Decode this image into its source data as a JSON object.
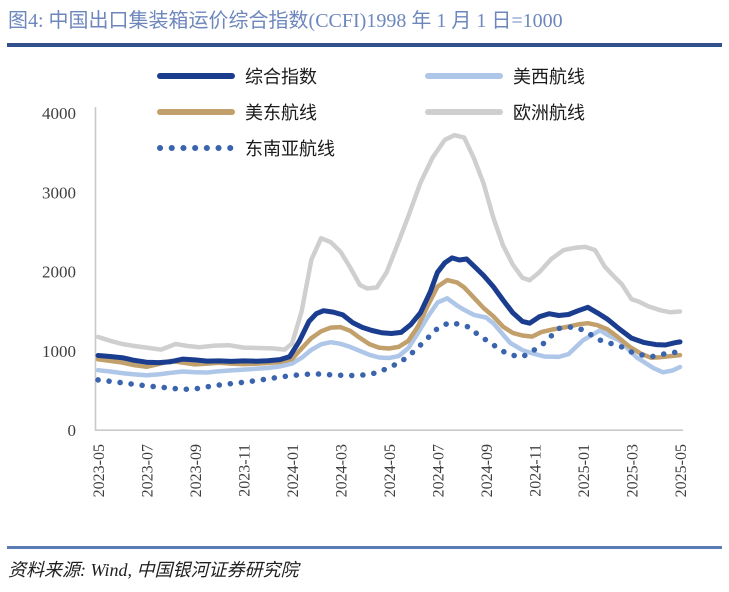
{
  "header": {
    "title": "图4: 中国出口集装箱运价综合指数(CCFI)1998 年 1 月 1 日=1000"
  },
  "footer": {
    "source": "资料来源: Wind, 中国银河证券研究院"
  },
  "colors": {
    "title_text": "#6D87BD",
    "title_rule": "#31508C",
    "footer_rule": "#5B7BB4",
    "axis_line": "#C9C9C9",
    "axis_text": "#3F3F3F"
  },
  "chart_data": {
    "type": "line",
    "title": "中国出口集装箱运价综合指数(CCFI) 1998年1月1日=1000",
    "grid": false,
    "legend_position": "top-left, two columns, inside plot",
    "x_axis": {
      "unit": "month",
      "start": "2023-05",
      "end": "2025-05",
      "range_months": [
        0,
        24
      ],
      "tick_labels": [
        "2023-05",
        "2023-07",
        "2023-09",
        "2023-11",
        "2024-01",
        "2024-03",
        "2024-05",
        "2024-07",
        "2024-09",
        "2024-11",
        "2025-01",
        "2025-03",
        "2025-05"
      ],
      "tick_positions_months": [
        0,
        2,
        4,
        6,
        8,
        10,
        12,
        14,
        16,
        18,
        20,
        22,
        24
      ]
    },
    "y_axis": {
      "ticks": [
        0,
        1000,
        2000,
        3000,
        4000
      ],
      "range": [
        0,
        4000
      ]
    },
    "draw_order": [
      "europe",
      "us-west",
      "us-east",
      "composite",
      "southeast-asia"
    ],
    "series": [
      {
        "id": "composite",
        "label": "综合指数",
        "color": "#1B3D8F",
        "style": "solid",
        "width": 5,
        "points": [
          [
            0,
            940
          ],
          [
            0.5,
            928
          ],
          [
            1,
            912
          ],
          [
            1.5,
            878
          ],
          [
            2,
            855
          ],
          [
            2.5,
            850
          ],
          [
            3,
            862
          ],
          [
            3.5,
            895
          ],
          [
            4,
            885
          ],
          [
            4.5,
            870
          ],
          [
            5,
            872
          ],
          [
            5.5,
            865
          ],
          [
            6,
            872
          ],
          [
            6.5,
            868
          ],
          [
            7,
            874
          ],
          [
            7.5,
            888
          ],
          [
            7.9,
            925
          ],
          [
            8.3,
            1120
          ],
          [
            8.7,
            1370
          ],
          [
            9,
            1468
          ],
          [
            9.3,
            1505
          ],
          [
            9.7,
            1488
          ],
          [
            10.1,
            1452
          ],
          [
            10.5,
            1355
          ],
          [
            10.9,
            1295
          ],
          [
            11.3,
            1255
          ],
          [
            11.7,
            1228
          ],
          [
            12.1,
            1218
          ],
          [
            12.5,
            1232
          ],
          [
            12.9,
            1330
          ],
          [
            13.3,
            1480
          ],
          [
            13.7,
            1740
          ],
          [
            14,
            1990
          ],
          [
            14.3,
            2110
          ],
          [
            14.6,
            2172
          ],
          [
            14.9,
            2145
          ],
          [
            15.2,
            2158
          ],
          [
            15.5,
            2070
          ],
          [
            15.9,
            1950
          ],
          [
            16.3,
            1810
          ],
          [
            16.7,
            1640
          ],
          [
            17.1,
            1480
          ],
          [
            17.5,
            1370
          ],
          [
            17.8,
            1348
          ],
          [
            18.2,
            1428
          ],
          [
            18.6,
            1468
          ],
          [
            19,
            1445
          ],
          [
            19.4,
            1458
          ],
          [
            19.8,
            1505
          ],
          [
            20.2,
            1548
          ],
          [
            20.6,
            1478
          ],
          [
            21,
            1400
          ],
          [
            21.5,
            1275
          ],
          [
            22,
            1160
          ],
          [
            22.5,
            1105
          ],
          [
            23,
            1078
          ],
          [
            23.4,
            1072
          ],
          [
            23.8,
            1102
          ],
          [
            24,
            1112
          ]
        ]
      },
      {
        "id": "us-west",
        "label": "美西航线",
        "color": "#AEC6E8",
        "style": "solid",
        "width": 4.5,
        "points": [
          [
            0,
            755
          ],
          [
            0.5,
            738
          ],
          [
            1,
            718
          ],
          [
            1.5,
            702
          ],
          [
            2,
            692
          ],
          [
            2.5,
            702
          ],
          [
            3,
            722
          ],
          [
            3.5,
            738
          ],
          [
            4,
            728
          ],
          [
            4.5,
            725
          ],
          [
            5,
            742
          ],
          [
            5.5,
            752
          ],
          [
            6,
            762
          ],
          [
            6.5,
            772
          ],
          [
            7,
            782
          ],
          [
            7.5,
            802
          ],
          [
            8,
            838
          ],
          [
            8.4,
            912
          ],
          [
            8.8,
            1012
          ],
          [
            9.2,
            1082
          ],
          [
            9.6,
            1108
          ],
          [
            10,
            1088
          ],
          [
            10.4,
            1048
          ],
          [
            10.8,
            998
          ],
          [
            11.2,
            948
          ],
          [
            11.6,
            915
          ],
          [
            12,
            908
          ],
          [
            12.4,
            932
          ],
          [
            12.8,
            1035
          ],
          [
            13.2,
            1225
          ],
          [
            13.6,
            1430
          ],
          [
            14,
            1608
          ],
          [
            14.4,
            1662
          ],
          [
            14.8,
            1572
          ],
          [
            15.1,
            1515
          ],
          [
            15.5,
            1452
          ],
          [
            16,
            1420
          ],
          [
            16.3,
            1348
          ],
          [
            17,
            1098
          ],
          [
            17.5,
            1008
          ],
          [
            17.9,
            968
          ],
          [
            18.4,
            928
          ],
          [
            19,
            922
          ],
          [
            19.4,
            958
          ],
          [
            20,
            1132
          ],
          [
            20.7,
            1258
          ],
          [
            21.1,
            1185
          ],
          [
            21.5,
            1132
          ],
          [
            22.2,
            918
          ],
          [
            22.9,
            782
          ],
          [
            23.3,
            728
          ],
          [
            23.7,
            752
          ],
          [
            24,
            795
          ]
        ]
      },
      {
        "id": "us-east",
        "label": "美东航线",
        "color": "#C2A06B",
        "style": "solid",
        "width": 4.5,
        "points": [
          [
            0,
            892
          ],
          [
            0.5,
            872
          ],
          [
            1,
            852
          ],
          [
            1.5,
            818
          ],
          [
            2,
            798
          ],
          [
            2.5,
            832
          ],
          [
            3,
            872
          ],
          [
            3.5,
            850
          ],
          [
            4,
            828
          ],
          [
            4.5,
            838
          ],
          [
            5,
            848
          ],
          [
            5.5,
            838
          ],
          [
            6,
            832
          ],
          [
            6.5,
            836
          ],
          [
            7,
            846
          ],
          [
            7.5,
            858
          ],
          [
            8,
            895
          ],
          [
            8.4,
            1030
          ],
          [
            8.8,
            1160
          ],
          [
            9.2,
            1245
          ],
          [
            9.6,
            1292
          ],
          [
            10,
            1298
          ],
          [
            10.4,
            1252
          ],
          [
            10.8,
            1162
          ],
          [
            11.2,
            1082
          ],
          [
            11.6,
            1038
          ],
          [
            12,
            1028
          ],
          [
            12.4,
            1048
          ],
          [
            12.8,
            1125
          ],
          [
            13.2,
            1310
          ],
          [
            13.6,
            1570
          ],
          [
            14,
            1810
          ],
          [
            14.4,
            1892
          ],
          [
            14.8,
            1862
          ],
          [
            15.1,
            1800
          ],
          [
            15.5,
            1670
          ],
          [
            15.9,
            1540
          ],
          [
            16.3,
            1435
          ],
          [
            16.7,
            1305
          ],
          [
            17.1,
            1225
          ],
          [
            17.5,
            1192
          ],
          [
            17.9,
            1178
          ],
          [
            18.3,
            1238
          ],
          [
            18.8,
            1272
          ],
          [
            19.3,
            1298
          ],
          [
            19.8,
            1332
          ],
          [
            20.2,
            1348
          ],
          [
            20.6,
            1322
          ],
          [
            21,
            1272
          ],
          [
            21.4,
            1182
          ],
          [
            21.9,
            1055
          ],
          [
            22.4,
            962
          ],
          [
            22.8,
            912
          ],
          [
            23.2,
            918
          ],
          [
            23.6,
            932
          ],
          [
            24,
            945
          ]
        ]
      },
      {
        "id": "europe",
        "label": "欧洲航线",
        "color": "#CFCFCF",
        "style": "solid",
        "width": 4.5,
        "points": [
          [
            0,
            1175
          ],
          [
            0.5,
            1125
          ],
          [
            1,
            1085
          ],
          [
            1.5,
            1060
          ],
          [
            2,
            1040
          ],
          [
            2.6,
            1015
          ],
          [
            3.2,
            1085
          ],
          [
            3.7,
            1060
          ],
          [
            4.2,
            1045
          ],
          [
            4.8,
            1065
          ],
          [
            5.4,
            1070
          ],
          [
            6,
            1040
          ],
          [
            6.6,
            1035
          ],
          [
            7.2,
            1030
          ],
          [
            7.7,
            1015
          ],
          [
            8,
            1090
          ],
          [
            8.4,
            1500
          ],
          [
            8.8,
            2150
          ],
          [
            9.2,
            2420
          ],
          [
            9.6,
            2370
          ],
          [
            10,
            2250
          ],
          [
            10.4,
            2050
          ],
          [
            10.8,
            1830
          ],
          [
            11.1,
            1785
          ],
          [
            11.5,
            1800
          ],
          [
            11.9,
            1990
          ],
          [
            12.3,
            2300
          ],
          [
            12.8,
            2700
          ],
          [
            13.3,
            3120
          ],
          [
            13.8,
            3440
          ],
          [
            14.3,
            3660
          ],
          [
            14.7,
            3720
          ],
          [
            15.1,
            3690
          ],
          [
            15.5,
            3430
          ],
          [
            15.9,
            3110
          ],
          [
            16.3,
            2680
          ],
          [
            16.7,
            2330
          ],
          [
            17.1,
            2090
          ],
          [
            17.5,
            1920
          ],
          [
            17.8,
            1890
          ],
          [
            18.2,
            1990
          ],
          [
            18.7,
            2160
          ],
          [
            19.2,
            2270
          ],
          [
            19.7,
            2300
          ],
          [
            20.1,
            2310
          ],
          [
            20.5,
            2270
          ],
          [
            20.9,
            2060
          ],
          [
            21.3,
            1930
          ],
          [
            21.6,
            1840
          ],
          [
            22,
            1650
          ],
          [
            22.3,
            1620
          ],
          [
            22.7,
            1560
          ],
          [
            23.2,
            1510
          ],
          [
            23.6,
            1485
          ],
          [
            24,
            1495
          ]
        ]
      },
      {
        "id": "southeast-asia",
        "label": "东南亚航线",
        "color": "#3A64AE",
        "style": "dotted",
        "width": 5.5,
        "points": [
          [
            0,
            632
          ],
          [
            0.5,
            615
          ],
          [
            1,
            596
          ],
          [
            1.5,
            576
          ],
          [
            2,
            558
          ],
          [
            2.5,
            542
          ],
          [
            3,
            528
          ],
          [
            3.5,
            512
          ],
          [
            4,
            518
          ],
          [
            4.5,
            545
          ],
          [
            5,
            568
          ],
          [
            5.5,
            585
          ],
          [
            6,
            602
          ],
          [
            6.5,
            622
          ],
          [
            7,
            645
          ],
          [
            7.5,
            668
          ],
          [
            8,
            688
          ],
          [
            8.5,
            702
          ],
          [
            9,
            708
          ],
          [
            9.5,
            698
          ],
          [
            10,
            692
          ],
          [
            10.5,
            688
          ],
          [
            11,
            695
          ],
          [
            11.5,
            722
          ],
          [
            12,
            788
          ],
          [
            12.5,
            862
          ],
          [
            13,
            985
          ],
          [
            13.5,
            1132
          ],
          [
            14,
            1282
          ],
          [
            14.5,
            1358
          ],
          [
            14.9,
            1332
          ],
          [
            15.3,
            1298
          ],
          [
            15.7,
            1195
          ],
          [
            16.2,
            1098
          ],
          [
            16.6,
            1008
          ],
          [
            17,
            948
          ],
          [
            17.5,
            922
          ],
          [
            18,
            1012
          ],
          [
            18.4,
            1098
          ],
          [
            19,
            1282
          ],
          [
            19.6,
            1302
          ],
          [
            20,
            1262
          ],
          [
            20.7,
            1135
          ],
          [
            21.6,
            1048
          ],
          [
            22.1,
            968
          ],
          [
            22.5,
            942
          ],
          [
            22.8,
            922
          ],
          [
            23.1,
            945
          ],
          [
            23.5,
            968
          ],
          [
            24,
            988
          ]
        ]
      }
    ]
  }
}
